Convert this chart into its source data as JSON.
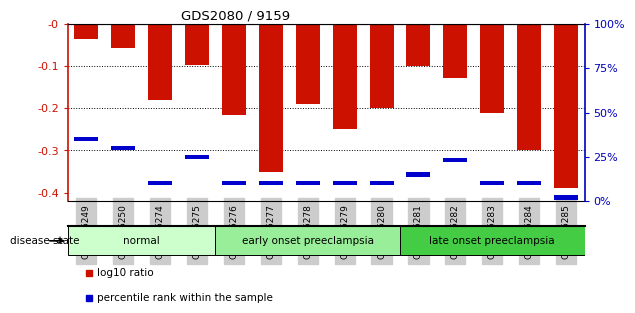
{
  "title": "GDS2080 / 9159",
  "samples": [
    "GSM106249",
    "GSM106250",
    "GSM106274",
    "GSM106275",
    "GSM106276",
    "GSM106277",
    "GSM106278",
    "GSM106279",
    "GSM106280",
    "GSM106281",
    "GSM106282",
    "GSM106283",
    "GSM106284",
    "GSM106285"
  ],
  "log10_ratio": [
    -0.035,
    -0.057,
    -0.18,
    -0.098,
    -0.215,
    -0.352,
    -0.19,
    -0.248,
    -0.2,
    -0.1,
    -0.128,
    -0.21,
    -0.3,
    -0.39
  ],
  "percentile": [
    35,
    30,
    10,
    25,
    10,
    10,
    10,
    10,
    10,
    15,
    23,
    10,
    10,
    2
  ],
  "groups": [
    {
      "label": "normal",
      "start": 0,
      "end": 3,
      "color": "#ccffcc"
    },
    {
      "label": "early onset preeclampsia",
      "start": 4,
      "end": 8,
      "color": "#99ee99"
    },
    {
      "label": "late onset preeclampsia",
      "start": 9,
      "end": 13,
      "color": "#44cc44"
    }
  ],
  "bar_color_red": "#cc1100",
  "bar_color_blue": "#0000cc",
  "ylim_min": -0.42,
  "ylim_max": 0.0,
  "yticks_left": [
    0.0,
    -0.1,
    -0.2,
    -0.3,
    -0.4
  ],
  "yticks_right_pct": [
    100,
    75,
    50,
    25,
    0
  ],
  "right_axis_color": "#0000bb",
  "left_axis_color": "#cc1100",
  "tick_bg": "#cccccc",
  "disease_state_label": "disease state",
  "legend_red": "log10 ratio",
  "legend_blue": "percentile rank within the sample",
  "bar_width": 0.65,
  "blue_marker_size": 0.01
}
